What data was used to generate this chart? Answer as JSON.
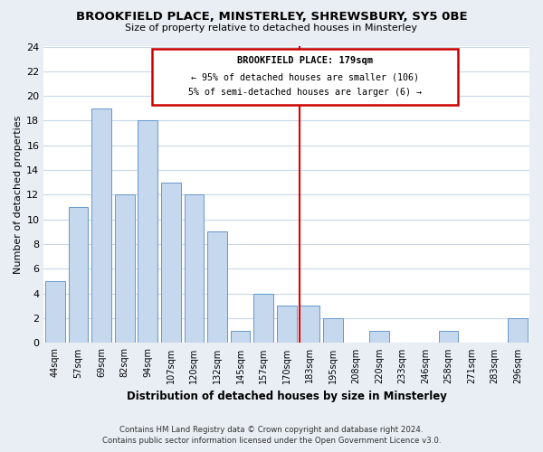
{
  "title": "BROOKFIELD PLACE, MINSTERLEY, SHREWSBURY, SY5 0BE",
  "subtitle": "Size of property relative to detached houses in Minsterley",
  "xlabel": "Distribution of detached houses by size in Minsterley",
  "ylabel": "Number of detached properties",
  "bins": [
    "44sqm",
    "57sqm",
    "69sqm",
    "82sqm",
    "94sqm",
    "107sqm",
    "120sqm",
    "132sqm",
    "145sqm",
    "157sqm",
    "170sqm",
    "183sqm",
    "195sqm",
    "208sqm",
    "220sqm",
    "233sqm",
    "246sqm",
    "258sqm",
    "271sqm",
    "283sqm",
    "296sqm"
  ],
  "values": [
    5,
    11,
    19,
    12,
    18,
    13,
    12,
    9,
    1,
    4,
    3,
    3,
    2,
    0,
    1,
    0,
    0,
    1,
    0,
    0,
    2
  ],
  "bar_color": "#c5d8ed",
  "bar_edgecolor": "#6699cc",
  "vline_x_index": 11,
  "vline_color": "#dd0000",
  "annotation_title": "BROOKFIELD PLACE: 179sqm",
  "annotation_line1": "← 95% of detached houses are smaller (106)",
  "annotation_line2": "5% of semi-detached houses are larger (6) →",
  "annotation_box_edgecolor": "#cc0000",
  "ylim": [
    0,
    24
  ],
  "yticks": [
    0,
    2,
    4,
    6,
    8,
    10,
    12,
    14,
    16,
    18,
    20,
    22,
    24
  ],
  "footer_line1": "Contains HM Land Registry data © Crown copyright and database right 2024.",
  "footer_line2": "Contains public sector information licensed under the Open Government Licence v3.0.",
  "bg_color": "#e8eef4",
  "plot_bg_color": "#ffffff",
  "grid_color": "#c8d8e8"
}
